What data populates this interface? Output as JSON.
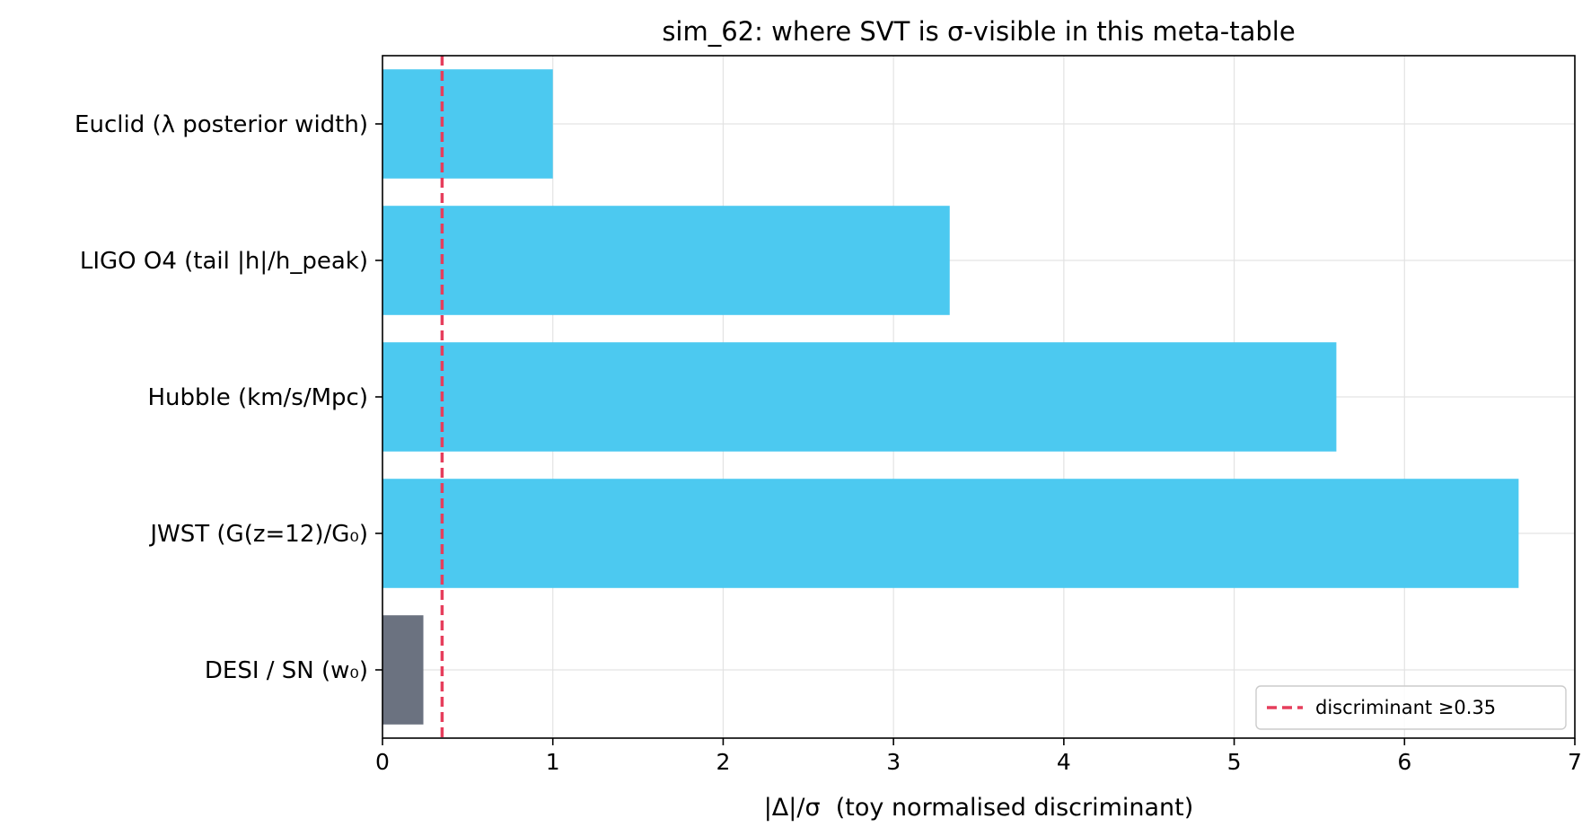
{
  "chart_data": {
    "type": "bar",
    "orientation": "horizontal",
    "title": "sim_62: where SVT is σ-visible in this meta-table",
    "xlabel": "|Δ|/σ  (toy normalised discriminant)",
    "ylabel": "",
    "categories": [
      "Euclid (λ posterior width)",
      "LIGO O4 (tail |h|/h_peak)",
      "Hubble (km/s/Mpc)",
      "JWST (G(z=12)/G₀)",
      "DESI / SN (w₀)"
    ],
    "values": [
      1.0,
      3.33,
      5.6,
      6.67,
      0.24
    ],
    "bar_colors": [
      "#4cc9f0",
      "#4cc9f0",
      "#4cc9f0",
      "#4cc9f0",
      "#6b7280"
    ],
    "xlim": [
      0,
      7
    ],
    "xticks": [
      0,
      1,
      2,
      3,
      4,
      5,
      6,
      7
    ],
    "threshold": {
      "value": 0.35,
      "label": "discriminant ≥0.35",
      "color": "#e63e5c",
      "style": "dashed"
    },
    "grid": true,
    "legend_position": "bottom-right"
  }
}
